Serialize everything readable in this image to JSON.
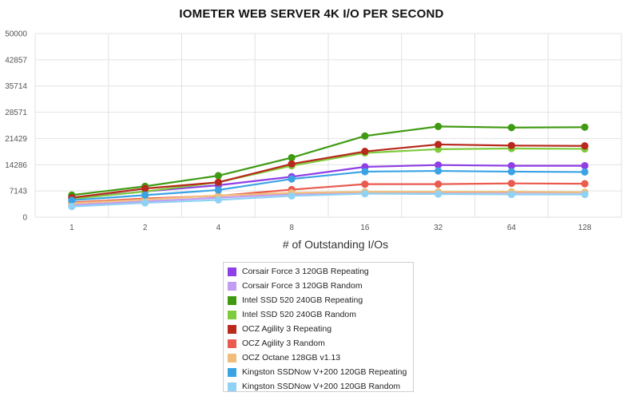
{
  "chart_data": {
    "type": "line",
    "title": "IOMETER WEB SERVER 4K I/O PER SECOND",
    "xlabel": "# of Outstanding I/Os",
    "ylabel": "",
    "categories": [
      "1",
      "2",
      "4",
      "8",
      "16",
      "32",
      "64",
      "128"
    ],
    "yticks": [
      "0",
      "7143",
      "14286",
      "21429",
      "28571",
      "35714",
      "42857",
      "50000"
    ],
    "ylim": [
      0,
      50000
    ],
    "grid": true,
    "legend_position": "bottom",
    "series": [
      {
        "name": "Corsair Force 3 120GB Repeating",
        "color": "#8f3fe6",
        "values": [
          5200,
          7000,
          8700,
          11000,
          13700,
          14200,
          14000,
          14000
        ]
      },
      {
        "name": "Corsair Force 3 120GB Random",
        "color": "#c29cf0",
        "values": [
          3300,
          4300,
          5300,
          6300,
          6700,
          6700,
          6700,
          6700
        ]
      },
      {
        "name": "Intel SSD 520 240GB Repeating",
        "color": "#3f9a12",
        "values": [
          6000,
          8400,
          11300,
          16200,
          22100,
          24700,
          24400,
          24500
        ]
      },
      {
        "name": "Intel SSD 520 240GB Random",
        "color": "#7ecb3c",
        "values": [
          5000,
          7000,
          9500,
          14000,
          17500,
          18500,
          18700,
          18600
        ]
      },
      {
        "name": "OCZ Agility 3 Repeating",
        "color": "#b8281c",
        "values": [
          5300,
          7800,
          9500,
          14500,
          17900,
          19800,
          19500,
          19400
        ]
      },
      {
        "name": "OCZ Agility 3 Random",
        "color": "#ea5a4e",
        "values": [
          4000,
          5100,
          5800,
          7500,
          9000,
          9000,
          9200,
          9100
        ]
      },
      {
        "name": "OCZ Octane 128GB v1.13",
        "color": "#f0be7a",
        "values": [
          3800,
          4800,
          5900,
          6600,
          6900,
          6900,
          6900,
          6800
        ]
      },
      {
        "name": "Kingston SSDNow V+200 120GB Repeating",
        "color": "#3ba3e4",
        "values": [
          4600,
          6000,
          7400,
          10400,
          12400,
          12600,
          12400,
          12300
        ]
      },
      {
        "name": "Kingston SSDNow V+200 120GB Random",
        "color": "#8fd2f5",
        "values": [
          2900,
          3900,
          4700,
          5800,
          6400,
          6300,
          6200,
          6200
        ]
      }
    ]
  }
}
